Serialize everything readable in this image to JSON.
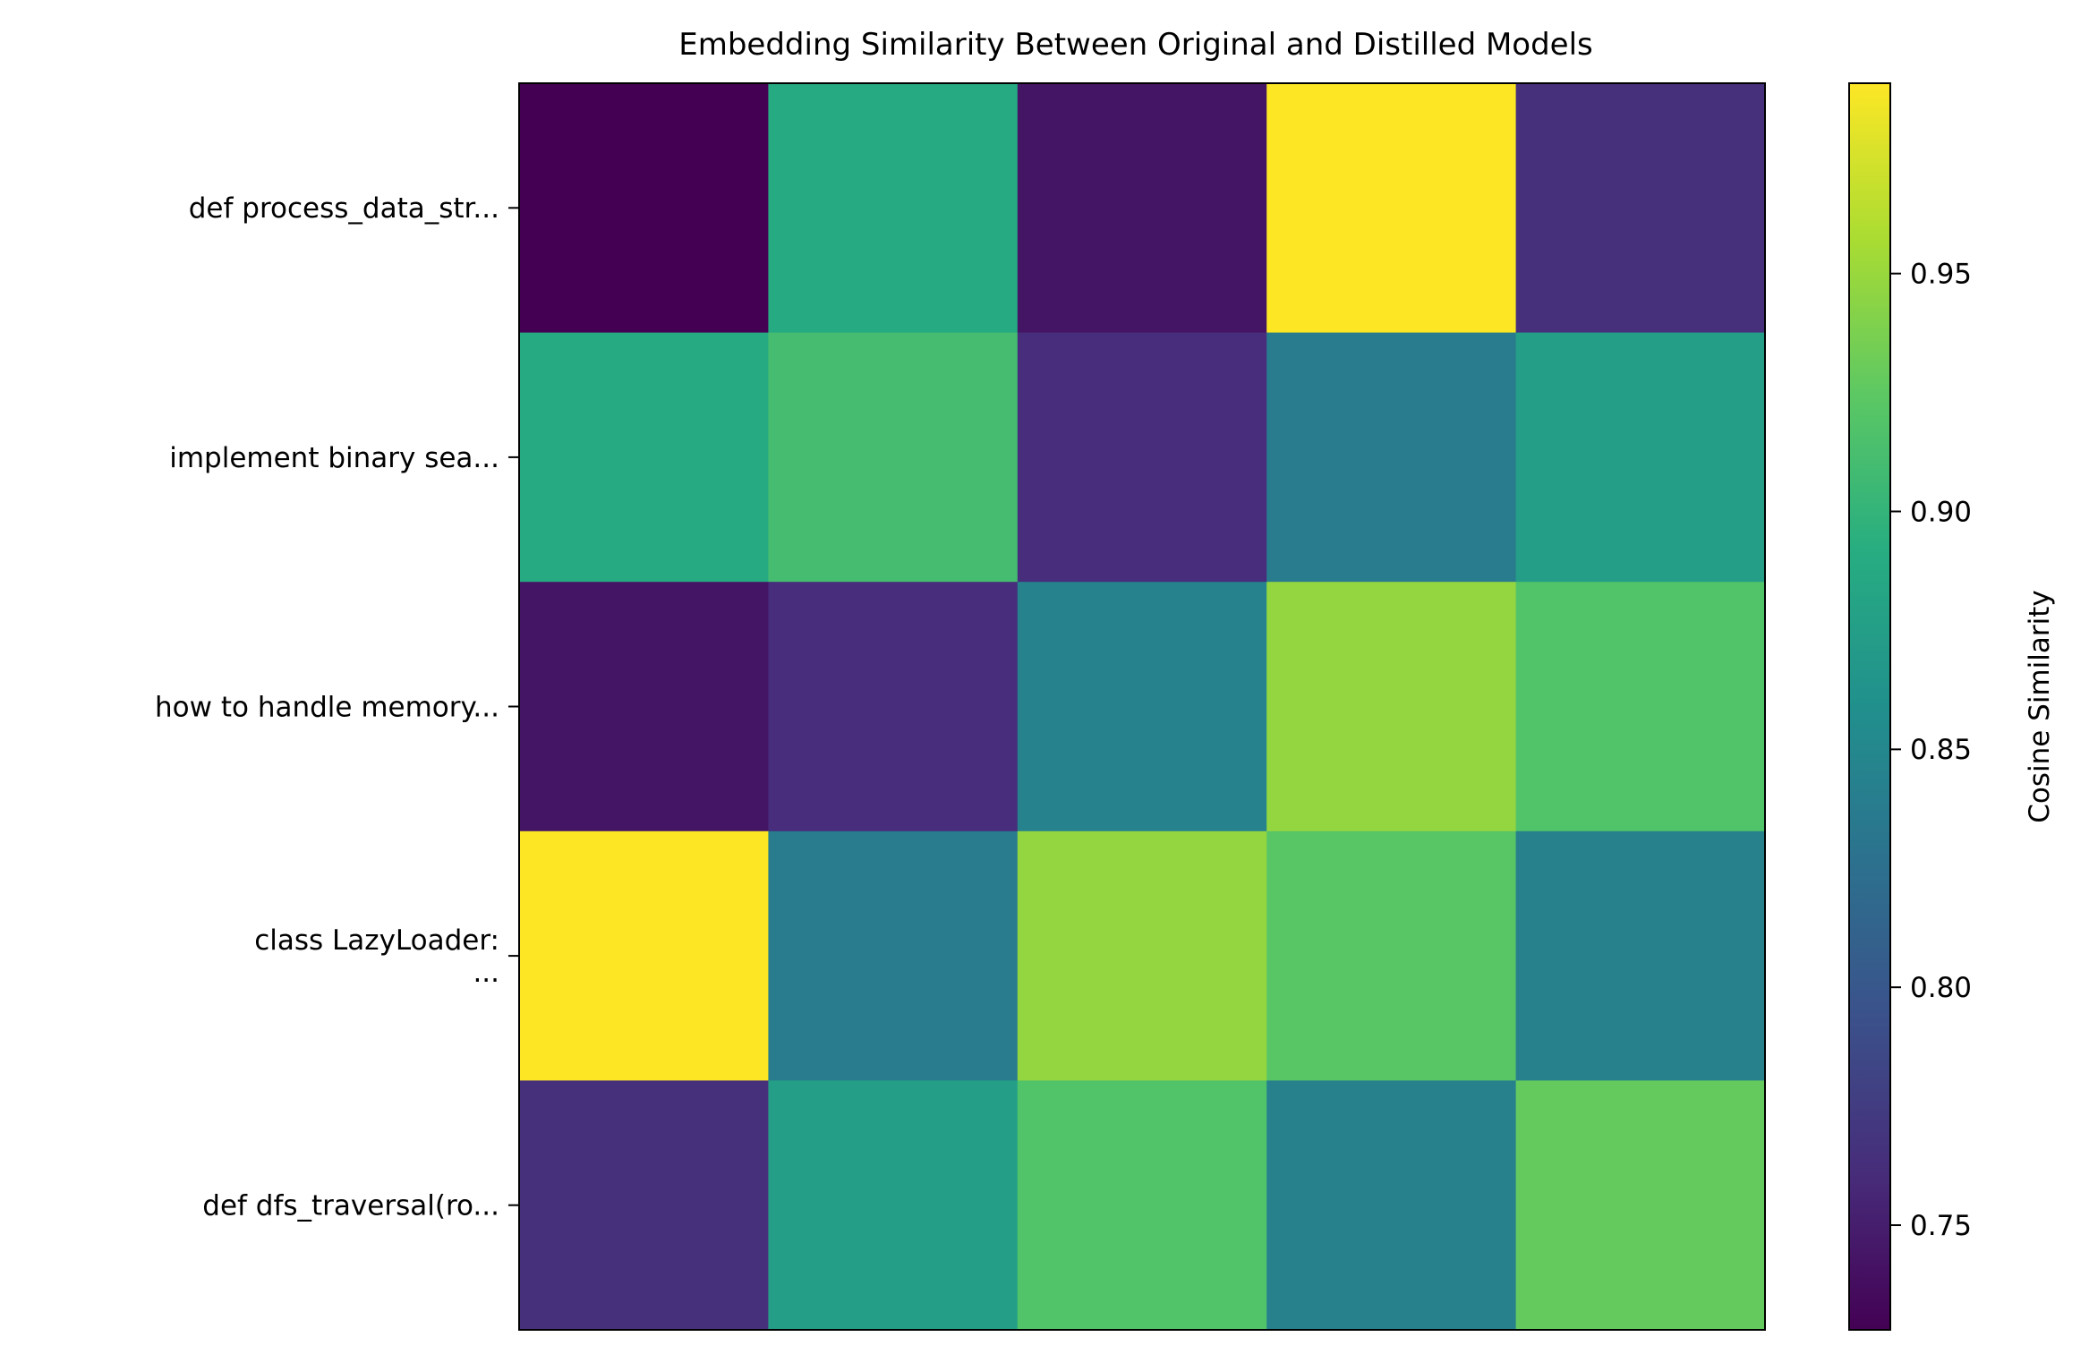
{
  "chart_data": {
    "type": "heatmap",
    "title": "Embedding Similarity Between Original and Distilled Models",
    "xlabel": "",
    "ylabel": "",
    "x_tick_labels": [],
    "y_tick_labels": [
      "def process_data_str...",
      "implement binary sea...",
      "how to handle memory...",
      "class LazyLoader:\n...",
      "def dfs_traversal(ro..."
    ],
    "values": [
      [
        0.728,
        0.888,
        0.743,
        0.99,
        0.764
      ],
      [
        0.888,
        0.91,
        0.762,
        0.838,
        0.875
      ],
      [
        0.743,
        0.762,
        0.845,
        0.948,
        0.918
      ],
      [
        0.99,
        0.838,
        0.948,
        0.922,
        0.843
      ],
      [
        0.764,
        0.875,
        0.918,
        0.843,
        0.928
      ]
    ],
    "colormap": "viridis",
    "colorbar": {
      "label": "Cosine Similarity",
      "vmin": 0.728,
      "vmax": 0.99,
      "ticks": [
        0.75,
        0.8,
        0.85,
        0.9,
        0.95
      ],
      "tick_labels": [
        "0.75",
        "0.80",
        "0.85",
        "0.90",
        "0.95"
      ]
    }
  }
}
